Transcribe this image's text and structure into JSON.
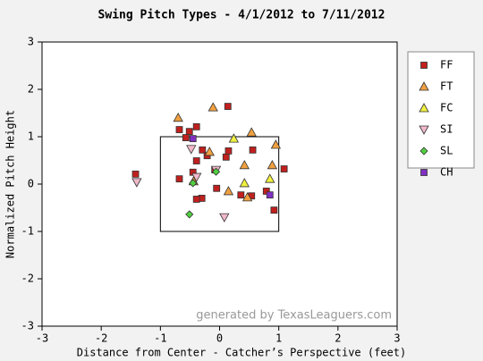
{
  "chart_data": {
    "type": "scatter",
    "title": "Swing Pitch Types - 4/1/2012 to 7/11/2012",
    "x_label": "Distance from Center - Catcher’s Perspective (feet)",
    "y_label": "Normalized Pitch Height",
    "watermark": "generated by TexasLeaguers.com",
    "xlim": [
      -3,
      3
    ],
    "ylim": [
      -3,
      3
    ],
    "xticks": [
      -3,
      -2,
      -1,
      0,
      1,
      2,
      3
    ],
    "yticks": [
      -3,
      -2,
      -1,
      0,
      1,
      2,
      3
    ],
    "zone": {
      "x": [
        -1,
        1
      ],
      "y": [
        -1,
        1
      ]
    },
    "series": [
      {
        "name": "FF",
        "color": "#c0201e",
        "marker": "square",
        "x": [
          0.14,
          -0.68,
          -0.51,
          -0.39,
          -0.57,
          -1.42,
          -0.29,
          -0.21,
          0.11,
          0.15,
          -0.39,
          0.56,
          -0.45,
          -0.68,
          -0.08,
          1.09,
          -0.05,
          -0.3,
          -0.39,
          0.36,
          0.54,
          0.79,
          0.92
        ],
        "y": [
          1.64,
          1.15,
          1.11,
          1.21,
          0.98,
          0.21,
          0.72,
          0.6,
          0.57,
          0.7,
          0.49,
          0.72,
          0.25,
          0.11,
          0.3,
          0.32,
          -0.09,
          -0.3,
          -0.32,
          -0.23,
          -0.25,
          -0.15,
          -0.55
        ]
      },
      {
        "name": "FT",
        "color": "#f0a040",
        "marker": "triangle-up",
        "x": [
          -0.7,
          -0.11,
          0.54,
          0.95,
          -0.17,
          0.42,
          0.89,
          0.15,
          0.47,
          -0.44
        ],
        "y": [
          1.4,
          1.62,
          1.09,
          0.83,
          0.68,
          0.4,
          0.4,
          -0.15,
          -0.28,
          0.06
        ]
      },
      {
        "name": "FC",
        "color": "#f0f040",
        "marker": "triangle-up",
        "x": [
          0.24,
          0.85,
          0.42
        ],
        "y": [
          0.96,
          0.11,
          0.02
        ]
      },
      {
        "name": "SI",
        "color": "#f0b8c8",
        "marker": "triangle-down",
        "x": [
          -1.4,
          -0.48,
          -0.39,
          -0.06,
          0.08
        ],
        "y": [
          0.04,
          0.74,
          0.15,
          0.3,
          -0.7
        ]
      },
      {
        "name": "SL",
        "color": "#50d040",
        "marker": "diamond",
        "x": [
          -0.45,
          -0.51,
          -0.06
        ],
        "y": [
          0.02,
          -0.64,
          0.26
        ]
      },
      {
        "name": "CH",
        "color": "#8030c0",
        "marker": "square",
        "x": [
          -0.45,
          0.85
        ],
        "y": [
          0.96,
          -0.23
        ]
      }
    ]
  }
}
